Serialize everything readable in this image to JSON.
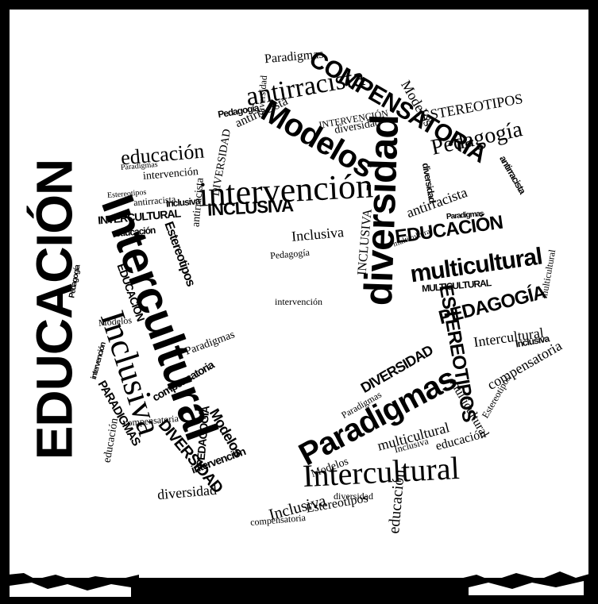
{
  "canvas": {
    "background": "#000000",
    "paper": "#ffffff",
    "ink": "#000000"
  },
  "words": [
    "EDUCACIÓN",
    "Intercultural",
    "Inclusiva",
    "intervención",
    "Modelos",
    "diversidad",
    "COMPENSATORIA",
    "antirracista",
    "Paradigmas",
    "Intercultural",
    "Pedagogía",
    "multicultural",
    "EDUCACIÓN",
    "PEDAGOGÍA",
    "ESTEREOTIPOS",
    "educación",
    "INCLUSIVA",
    "INTERCULTURAL",
    "Paradigmas",
    "DIVERSIDAD",
    "PARADIGMAS",
    "Estereotipos",
    "Inclusiva",
    "compensatoria",
    "Intercultural",
    "multicultural",
    "diversidad",
    "MULTICULTURAL",
    "antirracista",
    "educación",
    "Paradigmas",
    "Modelos",
    "DIVERSIDAD",
    "Inclusiva",
    "Estereotipos",
    "diversidad",
    "Pedagogía",
    "antirracista",
    "intervención",
    "educación",
    "EDUCACIÓN",
    "multicultural",
    "Inclusiva",
    "Paradigmas",
    "compensatoria",
    "Modelos",
    "diversidad",
    "intervención",
    "Pedagogía",
    "INTERVENCIÓN",
    "antirracista",
    "PEDAGOGÍA",
    "ESTEREOTIPOS",
    "Paradigmas",
    "Modelos",
    "educación",
    "multicultural",
    "diversidad",
    "INCLUSIVA",
    "Estereotipos",
    "compensatoria",
    "antirracista",
    "intervención",
    "DIVERSIDAD",
    "Inclusiva",
    "Pedagogía",
    "educación",
    "Paradigmas",
    "diversidad",
    "Modelos",
    "Estereotipos",
    "compensatoria",
    "Inclusiva",
    "multicultural",
    "antirracista",
    "intervención"
  ]
}
